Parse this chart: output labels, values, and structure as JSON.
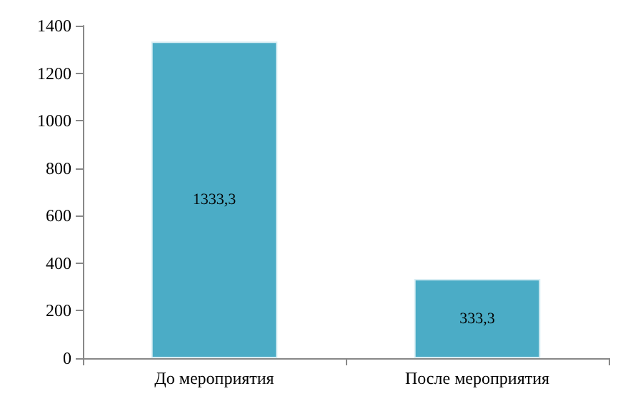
{
  "chart_data": {
    "type": "bar",
    "categories": [
      "До мероприятия",
      "После мероприятия"
    ],
    "values": [
      1333.3,
      333.3
    ],
    "color": "#4bacc6",
    "value_labels": [
      "1333,3",
      "333,3"
    ],
    "ylim": [
      0,
      1400
    ],
    "yticks": [
      0,
      200,
      400,
      600,
      800,
      1000,
      1200,
      1400
    ],
    "grid": false
  }
}
